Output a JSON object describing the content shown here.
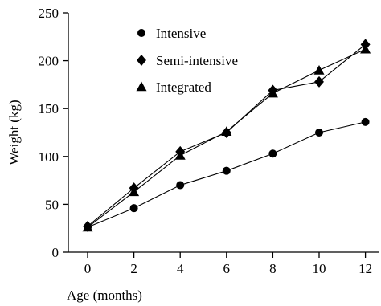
{
  "chart_data": {
    "type": "line",
    "x": [
      0,
      2,
      4,
      6,
      8,
      10,
      12
    ],
    "series": [
      {
        "name": "Intensive",
        "marker": "circle",
        "values": [
          26,
          46,
          70,
          85,
          103,
          125,
          136
        ]
      },
      {
        "name": "Semi-intensive",
        "marker": "diamond",
        "values": [
          27,
          67,
          105,
          125,
          169,
          178,
          217
        ]
      },
      {
        "name": "Integrated",
        "marker": "triangle",
        "values": [
          26,
          63,
          101,
          126,
          166,
          190,
          212
        ]
      }
    ],
    "xlabel": "Age (months)",
    "ylabel": "Weight (kg)",
    "xlim": [
      -0.9,
      13.0
    ],
    "ylim": [
      0,
      250
    ],
    "xticks": [
      "0",
      "2",
      "4",
      "6",
      "8",
      "10",
      "12"
    ],
    "yticks": [
      "0",
      "50",
      "100",
      "150",
      "200",
      "250"
    ],
    "grid": false,
    "legend": "top-left",
    "color": "#000000"
  }
}
